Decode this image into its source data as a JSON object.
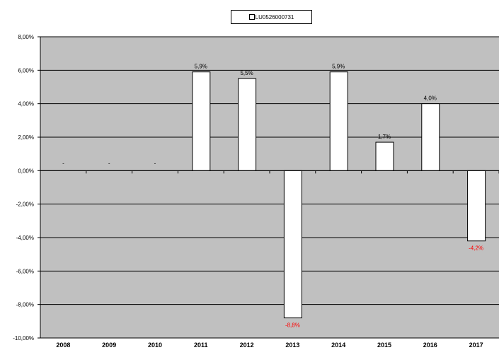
{
  "chart_data": {
    "type": "bar",
    "categories": [
      "2008",
      "2009",
      "2010",
      "2011",
      "2012",
      "2013",
      "2014",
      "2015",
      "2016",
      "2017"
    ],
    "series": [
      {
        "name": "LU0526000731",
        "values": [
          null,
          null,
          null,
          5.9,
          5.5,
          -8.8,
          5.9,
          1.7,
          4.0,
          -4.2
        ],
        "labels": [
          "-",
          "-",
          "-",
          "5,9%",
          "5,5%",
          "-8,8%",
          "5,9%",
          "1,7%",
          "4,0%",
          "-4,2%"
        ]
      }
    ],
    "yticks": [
      "8,00%",
      "6,00%",
      "4,00%",
      "2,00%",
      "0,00%",
      "-2,00%",
      "-4,00%",
      "-6,00%",
      "-8,00%",
      "-10,00%"
    ],
    "ylim": [
      -10,
      8
    ],
    "ytick_step": 2,
    "grid": true,
    "legend_position": "top-center",
    "colors": {
      "plot_background": "#c0c0c0",
      "bar_fill": "#ffffff",
      "bar_stroke": "#000000",
      "gridline": "#000000",
      "negative_label": "#ff0000",
      "positive_label": "#000000"
    }
  }
}
